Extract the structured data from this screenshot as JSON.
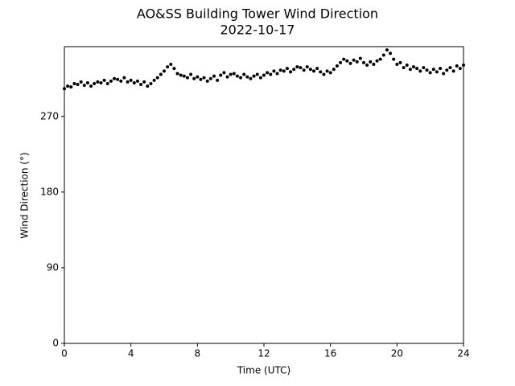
{
  "chart_data": {
    "type": "scatter",
    "title": "AO&SS Building Tower Wind Direction",
    "subtitle": "2022-10-17",
    "x_label": "Time (UTC)",
    "y_label": "Wind Direction (°)",
    "color": "#000000",
    "xlim": [
      0,
      24
    ],
    "xticks": [
      0,
      4,
      8,
      12,
      16,
      20,
      24
    ],
    "ylim": [
      0,
      353
    ],
    "yticks": [
      0,
      90,
      180,
      270
    ],
    "x": [
      0,
      0.2,
      0.4,
      0.6,
      0.8,
      1,
      1.2,
      1.4,
      1.6,
      1.8,
      2,
      2.2,
      2.4,
      2.6,
      2.8,
      3,
      3.2,
      3.4,
      3.6,
      3.8,
      4,
      4.2,
      4.4,
      4.6,
      4.8,
      5,
      5.2,
      5.4,
      5.6,
      5.8,
      6,
      6.2,
      6.4,
      6.6,
      6.8,
      7,
      7.2,
      7.4,
      7.6,
      7.8,
      8,
      8.2,
      8.4,
      8.6,
      8.8,
      9,
      9.2,
      9.4,
      9.6,
      9.8,
      10,
      10.2,
      10.4,
      10.6,
      10.8,
      11,
      11.2,
      11.4,
      11.6,
      11.8,
      12,
      12.2,
      12.4,
      12.6,
      12.8,
      13,
      13.2,
      13.4,
      13.6,
      13.8,
      14,
      14.2,
      14.4,
      14.6,
      14.8,
      15,
      15.2,
      15.4,
      15.6,
      15.8,
      16,
      16.2,
      16.4,
      16.6,
      16.8,
      17,
      17.2,
      17.4,
      17.6,
      17.8,
      18,
      18.2,
      18.4,
      18.6,
      18.8,
      19,
      19.2,
      19.4,
      19.6,
      19.8,
      20,
      20.2,
      20.4,
      20.6,
      20.8,
      21,
      21.2,
      21.4,
      21.6,
      21.8,
      22,
      22.2,
      22.4,
      22.6,
      22.8,
      23,
      23.2,
      23.4,
      23.6,
      23.8,
      24
    ],
    "values": [
      303,
      306,
      305,
      309,
      308,
      311,
      307,
      310,
      306,
      309,
      311,
      310,
      313,
      309,
      312,
      315,
      314,
      312,
      316,
      311,
      313,
      310,
      312,
      308,
      311,
      306,
      309,
      313,
      316,
      320,
      324,
      329,
      332,
      327,
      321,
      319,
      318,
      316,
      320,
      315,
      317,
      314,
      316,
      312,
      315,
      318,
      313,
      319,
      322,
      317,
      320,
      321,
      318,
      316,
      320,
      317,
      315,
      318,
      320,
      316,
      319,
      322,
      320,
      324,
      321,
      325,
      324,
      327,
      323,
      326,
      329,
      328,
      325,
      329,
      326,
      324,
      327,
      323,
      320,
      324,
      322,
      326,
      330,
      334,
      338,
      336,
      333,
      337,
      335,
      339,
      334,
      331,
      335,
      332,
      336,
      338,
      343,
      349,
      345,
      338,
      332,
      334,
      328,
      331,
      326,
      329,
      327,
      324,
      328,
      325,
      322,
      326,
      323,
      327,
      321,
      325,
      328,
      324,
      330,
      327,
      331
    ]
  }
}
